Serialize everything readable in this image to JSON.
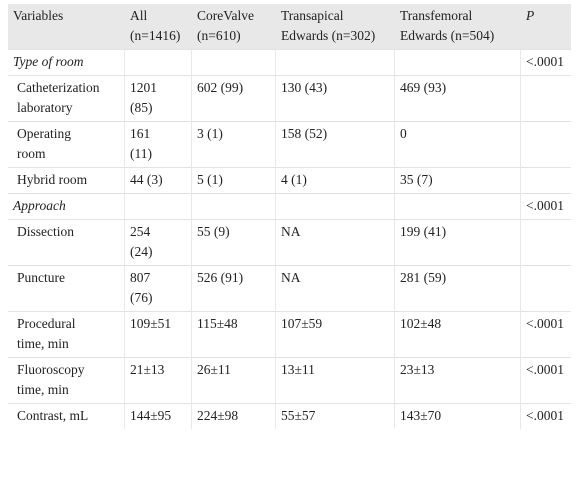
{
  "headers": [
    {
      "lines": [
        "Variables"
      ]
    },
    {
      "lines": [
        "All",
        "(n=1416)"
      ]
    },
    {
      "lines": [
        "CoreValve",
        "(n=610)"
      ]
    },
    {
      "lines": [
        "Transapical",
        "Edwards (n=302)"
      ]
    },
    {
      "lines": [
        "Transfemoral",
        "Edwards (n=504)"
      ]
    },
    {
      "lines": [
        "P"
      ]
    }
  ],
  "rows": [
    {
      "section": true,
      "cells": [
        [
          "Type of room"
        ],
        [],
        [],
        [],
        [],
        [
          "<.0001"
        ]
      ]
    },
    {
      "cells": [
        [
          "Catheterization",
          "laboratory"
        ],
        [
          "1201",
          "(85)"
        ],
        [
          "602 (99)"
        ],
        [
          "130 (43)"
        ],
        [
          "469 (93)"
        ],
        []
      ]
    },
    {
      "cells": [
        [
          "Operating",
          "room"
        ],
        [
          "161",
          "(11)"
        ],
        [
          "3 (1)"
        ],
        [
          "158 (52)"
        ],
        [
          "0"
        ],
        []
      ]
    },
    {
      "cells": [
        [
          "Hybrid room"
        ],
        [
          "44 (3)"
        ],
        [
          "5 (1)"
        ],
        [
          "4 (1)"
        ],
        [
          "35 (7)"
        ],
        []
      ]
    },
    {
      "section": true,
      "cells": [
        [
          "Approach"
        ],
        [],
        [],
        [],
        [],
        [
          "<.0001"
        ]
      ]
    },
    {
      "cells": [
        [
          "Dissection"
        ],
        [
          "254",
          "(24)"
        ],
        [
          "55 (9)"
        ],
        [
          "NA"
        ],
        [
          "199 (41)"
        ],
        []
      ]
    },
    {
      "cells": [
        [
          "Puncture"
        ],
        [
          "807",
          "(76)"
        ],
        [
          "526 (91)"
        ],
        [
          "NA"
        ],
        [
          "281 (59)"
        ],
        []
      ]
    },
    {
      "cells": [
        [
          "Procedural",
          "time, min"
        ],
        [
          "109±51"
        ],
        [
          "115±48"
        ],
        [
          "107±59"
        ],
        [
          "102±48"
        ],
        [
          "<.0001"
        ]
      ]
    },
    {
      "cells": [
        [
          "Fluoroscopy",
          "time, min"
        ],
        [
          "21±13"
        ],
        [
          "26±11"
        ],
        [
          "13±11"
        ],
        [
          "23±13"
        ],
        [
          "<.0001"
        ]
      ]
    },
    {
      "cells": [
        [
          "Contrast, mL"
        ],
        [
          "144±95"
        ],
        [
          "224±98"
        ],
        [
          "55±57"
        ],
        [
          "143±70"
        ],
        [
          "<.0001"
        ]
      ]
    }
  ]
}
